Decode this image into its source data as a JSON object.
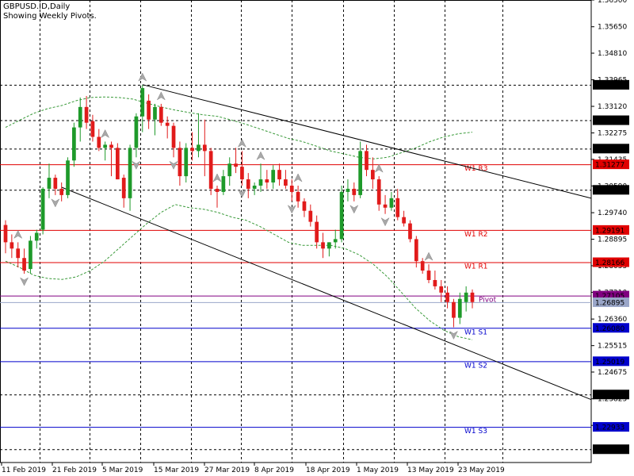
{
  "header": {
    "title": "GBPUSD.ID,Daily",
    "subtitle": "Showing Weekly Pivots."
  },
  "colors": {
    "bull": "#1e9a2a",
    "bear": "#e11b1b",
    "resistance": "#e00000",
    "support": "#0000cc",
    "pivot": "#800080",
    "envelope": "#3a9a3a",
    "channel": "#000000",
    "grid": "#000000",
    "fractal": "#a8a8a8"
  },
  "chart_data": {
    "type": "candlestick",
    "title": "GBPUSD.ID,Daily",
    "subtitle": "Showing Weekly Pivots.",
    "ylim": [
      1.218,
      1.365
    ],
    "y_ticks": [
      "1.36500",
      "1.35650",
      "1.34810",
      "1.33965",
      "1.33120",
      "1.32275",
      "1.31435",
      "1.30590",
      "1.29740",
      "1.28895",
      "1.28055",
      "1.27210",
      "1.26360",
      "1.25515",
      "1.24675",
      "1.23825",
      "1.22980"
    ],
    "y_highlight_labels": [
      {
        "label": "1.33805",
        "value": 1.33805,
        "style": "dark"
      },
      {
        "label": "1.32679",
        "value": 1.32679,
        "style": "dark"
      },
      {
        "label": "1.31777",
        "value": 1.31777,
        "style": "dark"
      },
      {
        "label": "1.31277",
        "value": 1.31277,
        "style": "red"
      },
      {
        "label": "1.30466",
        "value": 1.30466,
        "style": "dark"
      },
      {
        "label": "1.29191",
        "value": 1.29191,
        "style": "red"
      },
      {
        "label": "1.28166",
        "value": 1.28166,
        "style": "red"
      },
      {
        "label": "1.27105",
        "value": 1.27105,
        "style": "purple"
      },
      {
        "label": "1.26895",
        "value": 1.26895,
        "style": "gray"
      },
      {
        "label": "1.26080",
        "value": 1.2608,
        "style": "blue"
      },
      {
        "label": "1.25019",
        "value": 1.25019,
        "style": "blue"
      },
      {
        "label": "1.23962",
        "value": 1.23962,
        "style": "dark"
      },
      {
        "label": "1.22933",
        "value": 1.22933,
        "style": "blue"
      },
      {
        "label": "1.22222",
        "value": 1.22222,
        "style": "dark"
      }
    ],
    "x_labels": [
      "11 Feb 2019",
      "21 Feb 2019",
      "5 Mar 2019",
      "15 Mar 2019",
      "27 Mar 2019",
      "8 Apr 2019",
      "18 Apr 2019",
      "1 May 2019",
      "13 May 2019",
      "23 May 2019"
    ],
    "grid_levels": [
      1.33805,
      1.32679,
      1.31777,
      1.30466,
      1.23962,
      1.22222
    ],
    "pivot_levels": [
      {
        "name": "W1 R3",
        "value": 1.31277,
        "kind": "resistance"
      },
      {
        "name": "W1 R2",
        "value": 1.29191,
        "kind": "resistance"
      },
      {
        "name": "W1 R1",
        "value": 1.28166,
        "kind": "resistance"
      },
      {
        "name": "Pivot",
        "value": 1.27105,
        "kind": "pivot"
      },
      {
        "name": "W1 S1",
        "value": 1.2608,
        "kind": "support"
      },
      {
        "name": "W1 S2",
        "value": 1.25019,
        "kind": "support"
      },
      {
        "name": "W1 S3",
        "value": 1.22933,
        "kind": "support"
      }
    ],
    "candles": [
      [
        1.2935,
        1.295,
        1.2845,
        1.288
      ],
      [
        1.288,
        1.2905,
        1.283,
        1.286
      ],
      [
        1.286,
        1.288,
        1.28,
        1.283
      ],
      [
        1.283,
        1.286,
        1.278,
        1.279
      ],
      [
        1.2795,
        1.29,
        1.278,
        1.2885
      ],
      [
        1.2885,
        1.292,
        1.286,
        1.291
      ],
      [
        1.292,
        1.3055,
        1.2905,
        1.305
      ],
      [
        1.305,
        1.313,
        1.302,
        1.3085
      ],
      [
        1.3085,
        1.3095,
        1.303,
        1.305
      ],
      [
        1.305,
        1.307,
        1.301,
        1.303
      ],
      [
        1.303,
        1.315,
        1.302,
        1.314
      ],
      [
        1.314,
        1.326,
        1.312,
        1.3245
      ],
      [
        1.3245,
        1.334,
        1.32,
        1.331
      ],
      [
        1.331,
        1.3345,
        1.324,
        1.326
      ],
      [
        1.3265,
        1.3285,
        1.32,
        1.3215
      ],
      [
        1.3215,
        1.324,
        1.317,
        1.318
      ],
      [
        1.318,
        1.32,
        1.314,
        1.319
      ],
      [
        1.319,
        1.32,
        1.309,
        1.318
      ],
      [
        1.318,
        1.3195,
        1.308,
        1.308
      ],
      [
        1.3085,
        1.3095,
        1.299,
        1.302
      ],
      [
        1.302,
        1.319,
        1.298,
        1.318
      ],
      [
        1.318,
        1.329,
        1.315,
        1.328
      ],
      [
        1.328,
        1.338,
        1.323,
        1.337
      ],
      [
        1.333,
        1.335,
        1.324,
        1.327
      ],
      [
        1.327,
        1.332,
        1.322,
        1.331
      ],
      [
        1.331,
        1.332,
        1.325,
        1.326
      ],
      [
        1.326,
        1.328,
        1.321,
        1.325
      ],
      [
        1.325,
        1.326,
        1.315,
        1.318
      ],
      [
        1.318,
        1.32,
        1.306,
        1.309
      ],
      [
        1.309,
        1.3195,
        1.307,
        1.318
      ],
      [
        1.318,
        1.323,
        1.314,
        1.317
      ],
      [
        1.317,
        1.329,
        1.315,
        1.319
      ],
      [
        1.319,
        1.327,
        1.309,
        1.317
      ],
      [
        1.317,
        1.318,
        1.303,
        1.305
      ],
      [
        1.305,
        1.306,
        1.299,
        1.304
      ],
      [
        1.304,
        1.311,
        1.303,
        1.309
      ],
      [
        1.309,
        1.315,
        1.306,
        1.313
      ],
      [
        1.313,
        1.318,
        1.31,
        1.312
      ],
      [
        1.312,
        1.317,
        1.306,
        1.308
      ],
      [
        1.308,
        1.31,
        1.302,
        1.305
      ],
      [
        1.305,
        1.307,
        1.303,
        1.306
      ],
      [
        1.306,
        1.313,
        1.304,
        1.308
      ],
      [
        1.308,
        1.311,
        1.305,
        1.307
      ],
      [
        1.307,
        1.3125,
        1.305,
        1.311
      ],
      [
        1.311,
        1.313,
        1.306,
        1.308
      ],
      [
        1.308,
        1.311,
        1.305,
        1.306
      ],
      [
        1.306,
        1.308,
        1.301,
        1.304
      ],
      [
        1.304,
        1.306,
        1.299,
        1.301
      ],
      [
        1.301,
        1.302,
        1.296,
        1.298
      ],
      [
        1.298,
        1.3,
        1.293,
        1.2945
      ],
      [
        1.2945,
        1.2965,
        1.286,
        1.288
      ],
      [
        1.288,
        1.291,
        1.283,
        1.286
      ],
      [
        1.286,
        1.288,
        1.2835,
        1.288
      ],
      [
        1.288,
        1.292,
        1.286,
        1.289
      ],
      [
        1.289,
        1.306,
        1.288,
        1.304
      ],
      [
        1.304,
        1.308,
        1.301,
        1.305
      ],
      [
        1.305,
        1.307,
        1.301,
        1.303
      ],
      [
        1.303,
        1.32,
        1.302,
        1.317
      ],
      [
        1.317,
        1.319,
        1.309,
        1.311
      ],
      [
        1.311,
        1.315,
        1.305,
        1.308
      ],
      [
        1.308,
        1.309,
        1.298,
        1.3
      ],
      [
        1.3,
        1.303,
        1.297,
        1.299
      ],
      [
        1.299,
        1.304,
        1.298,
        1.302
      ],
      [
        1.302,
        1.305,
        1.295,
        1.296
      ],
      [
        1.296,
        1.298,
        1.293,
        1.294
      ],
      [
        1.294,
        1.295,
        1.288,
        1.289
      ],
      [
        1.289,
        1.29,
        1.28,
        1.282
      ],
      [
        1.282,
        1.283,
        1.278,
        1.279
      ],
      [
        1.279,
        1.281,
        1.275,
        1.276
      ],
      [
        1.276,
        1.279,
        1.273,
        1.274
      ],
      [
        1.274,
        1.276,
        1.269,
        1.272
      ],
      [
        1.272,
        1.274,
        1.267,
        1.269
      ],
      [
        1.269,
        1.27,
        1.261,
        1.264
      ],
      [
        1.264,
        1.272,
        1.262,
        1.27
      ],
      [
        1.269,
        1.274,
        1.266,
        1.272
      ],
      [
        1.272,
        1.273,
        1.267,
        1.269
      ]
    ],
    "channel_lines": [
      {
        "name": "upper",
        "from": {
          "bar": 22,
          "price": 1.3381
        },
        "to": {
          "bar": 999,
          "price": 1.302
        }
      },
      {
        "name": "lower",
        "from": {
          "bar": 9,
          "price": 1.3055
        },
        "to": {
          "bar": 999,
          "price": 1.238
        }
      }
    ],
    "envelope_upper": [
      [
        1.3245,
        1.3268,
        1.329,
        1.3305,
        1.3315,
        1.333,
        1.334,
        1.3342,
        1.334,
        1.3335,
        1.3322,
        1.331,
        1.33,
        1.3292,
        1.3285,
        1.328,
        1.3268,
        1.3255,
        1.324,
        1.3225,
        1.321,
        1.32,
        1.3185,
        1.317,
        1.316,
        1.315,
        1.3145,
        1.315,
        1.3165,
        1.318,
        1.32,
        1.3215,
        1.3225,
        1.323
      ]
    ],
    "envelope_lower": [
      [
        1.282,
        1.28,
        1.2775,
        1.2765,
        1.2762,
        1.277,
        1.279,
        1.282,
        1.286,
        1.29,
        1.294,
        1.2975,
        1.3,
        1.299,
        1.2985,
        1.2975,
        1.296,
        1.295,
        1.293,
        1.2905,
        1.288,
        1.287,
        1.287,
        1.287,
        1.286,
        1.284,
        1.281,
        1.277,
        1.272,
        1.267,
        1.263,
        1.26,
        1.258,
        1.257
      ]
    ]
  }
}
